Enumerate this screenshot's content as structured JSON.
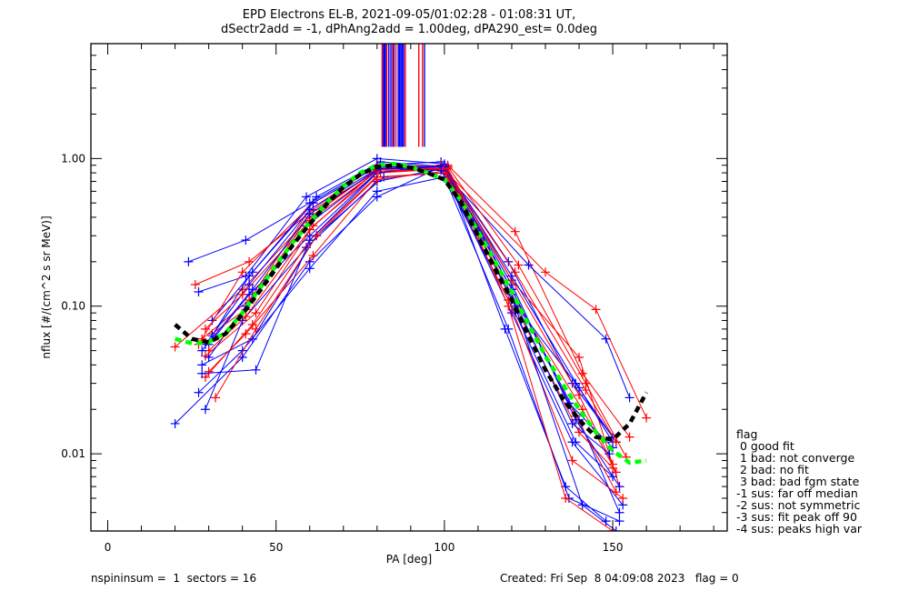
{
  "chart_data": {
    "type": "line",
    "title_line1": "EPD Electrons EL-B, 2021-09-05/01:02:28 - 01:08:31 UT,",
    "title_line2": "dSectr2add = -1, dPhAng2add = 1.00deg, dPA290_est=   0.0deg",
    "xlabel": "PA [deg]",
    "ylabel": "nflux [#/(cm^2 s sr MeV)]",
    "xlim": [
      -5,
      184
    ],
    "ylim": [
      0.003,
      6.0
    ],
    "yscale": "log",
    "xticks": [
      0,
      50,
      100,
      150
    ],
    "xtick_labels": [
      "0",
      "50",
      "100",
      "150"
    ],
    "yticks": [
      0.01,
      0.1,
      1.0
    ],
    "ytick_labels": [
      "0.01",
      "0.10",
      "1.00"
    ],
    "grid": false,
    "colors": {
      "red": "#ff0000",
      "blue": "#0000ff",
      "green": "#00ff00",
      "black": "#000000"
    },
    "vertical_markers": {
      "y_range": [
        1.2,
        6.0
      ],
      "lines": [
        {
          "x": 81.5,
          "color": "red"
        },
        {
          "x": 81.9,
          "color": "blue"
        },
        {
          "x": 82.2,
          "color": "blue"
        },
        {
          "x": 82.5,
          "color": "blue"
        },
        {
          "x": 82.9,
          "color": "red"
        },
        {
          "x": 83.5,
          "color": "blue"
        },
        {
          "x": 84.1,
          "color": "blue"
        },
        {
          "x": 84.6,
          "color": "red"
        },
        {
          "x": 85.0,
          "color": "blue"
        },
        {
          "x": 85.6,
          "color": "red"
        },
        {
          "x": 86.3,
          "color": "blue"
        },
        {
          "x": 86.7,
          "color": "blue"
        },
        {
          "x": 87.1,
          "color": "blue"
        },
        {
          "x": 87.5,
          "color": "blue"
        },
        {
          "x": 87.9,
          "color": "blue"
        },
        {
          "x": 88.4,
          "color": "red"
        },
        {
          "x": 92.4,
          "color": "red"
        },
        {
          "x": 93.5,
          "color": "red"
        },
        {
          "x": 94.1,
          "color": "blue"
        }
      ]
    },
    "series": [
      {
        "name": "spectrum-1",
        "color": "blue",
        "x": [
          20,
          40,
          60,
          80,
          100,
          120,
          140,
          152
        ],
        "y": [
          0.016,
          0.045,
          0.2,
          0.55,
          0.9,
          0.13,
          0.017,
          0.004
        ]
      },
      {
        "name": "spectrum-2",
        "color": "blue",
        "x": [
          24,
          41,
          60,
          80,
          99,
          119,
          138,
          150
        ],
        "y": [
          0.2,
          0.28,
          0.5,
          0.9,
          0.95,
          0.2,
          0.03,
          0.013
        ]
      },
      {
        "name": "spectrum-3",
        "color": "red",
        "x": [
          26,
          42,
          61,
          81,
          101,
          121,
          141,
          155
        ],
        "y": [
          0.14,
          0.2,
          0.45,
          0.85,
          0.9,
          0.32,
          0.035,
          0.013
        ]
      },
      {
        "name": "spectrum-4",
        "color": "blue",
        "x": [
          27,
          41,
          59,
          80,
          100,
          120,
          139,
          151
        ],
        "y": [
          0.125,
          0.16,
          0.55,
          1.0,
          0.92,
          0.11,
          0.03,
          0.012
        ]
      },
      {
        "name": "spectrum-5",
        "color": "red",
        "x": [
          20,
          40,
          60,
          80,
          99,
          130,
          145,
          160
        ],
        "y": [
          0.053,
          0.13,
          0.4,
          0.85,
          0.88,
          0.17,
          0.095,
          0.0175
        ]
      },
      {
        "name": "spectrum-6",
        "color": "blue",
        "x": [
          28,
          43,
          62,
          82,
          100,
          125,
          148,
          155
        ],
        "y": [
          0.04,
          0.06,
          0.3,
          0.75,
          0.8,
          0.19,
          0.06,
          0.024
        ]
      },
      {
        "name": "spectrum-7",
        "color": "red",
        "x": [
          29,
          44,
          61,
          80,
          101,
          120,
          140,
          152
        ],
        "y": [
          0.046,
          0.09,
          0.35,
          0.8,
          0.85,
          0.15,
          0.045,
          0.006
        ]
      },
      {
        "name": "spectrum-8",
        "color": "blue",
        "x": [
          30,
          42,
          60,
          81,
          99,
          120,
          138,
          153
        ],
        "y": [
          0.055,
          0.12,
          0.3,
          0.85,
          0.9,
          0.09,
          0.012,
          0.0045
        ]
      },
      {
        "name": "spectrum-9",
        "color": "red",
        "x": [
          31,
          41,
          60,
          79,
          100,
          121,
          140,
          150
        ],
        "y": [
          0.065,
          0.095,
          0.42,
          0.8,
          0.85,
          0.1,
          0.014,
          0.008
        ]
      },
      {
        "name": "spectrum-10",
        "color": "blue",
        "x": [
          29,
          40,
          59,
          80,
          99,
          119,
          137,
          152
        ],
        "y": [
          0.02,
          0.08,
          0.25,
          0.7,
          0.85,
          0.07,
          0.005,
          0.0035
        ]
      },
      {
        "name": "spectrum-11",
        "color": "red",
        "x": [
          30,
          41,
          61,
          80,
          100,
          120,
          141,
          151
        ],
        "y": [
          0.036,
          0.065,
          0.22,
          0.72,
          0.82,
          0.12,
          0.02,
          0.0075
        ]
      },
      {
        "name": "spectrum-12",
        "color": "blue",
        "x": [
          31,
          43,
          62,
          81,
          100,
          118,
          136,
          148
        ],
        "y": [
          0.08,
          0.17,
          0.55,
          0.95,
          0.88,
          0.07,
          0.006,
          0.0035
        ]
      },
      {
        "name": "spectrum-13",
        "color": "red",
        "x": [
          28,
          42,
          60,
          80,
          101,
          122,
          142,
          154
        ],
        "y": [
          0.06,
          0.11,
          0.45,
          0.9,
          0.88,
          0.19,
          0.03,
          0.0095
        ]
      },
      {
        "name": "spectrum-14",
        "color": "blue",
        "x": [
          27,
          40,
          60,
          80,
          100,
          121,
          139,
          150
        ],
        "y": [
          0.026,
          0.05,
          0.18,
          0.6,
          0.75,
          0.09,
          0.012,
          0.007
        ]
      },
      {
        "name": "spectrum-15",
        "color": "red",
        "x": [
          29,
          43,
          60,
          81,
          99,
          120,
          139,
          151
        ],
        "y": [
          0.033,
          0.075,
          0.28,
          0.8,
          0.9,
          0.13,
          0.018,
          0.0055
        ]
      },
      {
        "name": "spectrum-16",
        "color": "blue",
        "x": [
          30,
          41,
          59,
          80,
          100,
          120,
          137,
          150
        ],
        "y": [
          0.045,
          0.1,
          0.35,
          0.82,
          0.85,
          0.13,
          0.022,
          0.011
        ]
      },
      {
        "name": "spectrum-17",
        "color": "red",
        "x": [
          32,
          44,
          62,
          80,
          100,
          119,
          138,
          153
        ],
        "y": [
          0.024,
          0.07,
          0.3,
          0.75,
          0.8,
          0.11,
          0.009,
          0.005
        ]
      },
      {
        "name": "spectrum-18",
        "color": "blue",
        "x": [
          29,
          42,
          60,
          80,
          100,
          120,
          139,
          152
        ],
        "y": [
          0.055,
          0.14,
          0.45,
          0.85,
          0.88,
          0.14,
          0.017,
          0.006
        ]
      },
      {
        "name": "spectrum-19",
        "color": "red",
        "x": [
          27,
          40,
          61,
          80,
          100,
          120,
          140,
          150
        ],
        "y": [
          0.055,
          0.17,
          0.5,
          0.88,
          0.86,
          0.15,
          0.025,
          0.0085
        ]
      },
      {
        "name": "spectrum-20",
        "color": "blue",
        "x": [
          28,
          44,
          60,
          80,
          100,
          121,
          141,
          151
        ],
        "y": [
          0.035,
          0.037,
          0.28,
          0.8,
          0.9,
          0.1,
          0.0045,
          0.003
        ]
      },
      {
        "name": "spectrum-21",
        "color": "red",
        "x": [
          30,
          41,
          60,
          80,
          101,
          119,
          136,
          150
        ],
        "y": [
          0.05,
          0.085,
          0.33,
          0.84,
          0.86,
          0.1,
          0.005,
          0.003
        ]
      },
      {
        "name": "spectrum-22",
        "color": "blue",
        "x": [
          31,
          42,
          61,
          80,
          100,
          120,
          140,
          150
        ],
        "y": [
          0.063,
          0.16,
          0.5,
          0.88,
          0.88,
          0.16,
          0.028,
          0.012
        ]
      },
      {
        "name": "spectrum-23",
        "color": "red",
        "x": [
          29,
          40,
          60,
          80,
          100,
          121,
          142,
          151
        ],
        "y": [
          0.07,
          0.12,
          0.38,
          0.82,
          0.85,
          0.17,
          0.027,
          0.012
        ]
      },
      {
        "name": "spectrum-24",
        "color": "blue",
        "x": [
          28,
          43,
          60,
          81,
          99,
          120,
          138,
          149
        ],
        "y": [
          0.05,
          0.13,
          0.42,
          0.86,
          0.83,
          0.12,
          0.016,
          0.01
        ]
      }
    ],
    "fit_curves": [
      {
        "name": "fit-green",
        "color": "green",
        "style": "dashed",
        "x": [
          20,
          25,
          30,
          35,
          40,
          45,
          50,
          55,
          60,
          65,
          70,
          75,
          80,
          85,
          90,
          95,
          100,
          105,
          110,
          115,
          120,
          125,
          130,
          135,
          140,
          145,
          150,
          155,
          160
        ],
        "y": [
          0.06,
          0.056,
          0.057,
          0.066,
          0.09,
          0.13,
          0.19,
          0.27,
          0.37,
          0.5,
          0.65,
          0.8,
          0.9,
          0.92,
          0.88,
          0.8,
          0.72,
          0.52,
          0.32,
          0.2,
          0.125,
          0.075,
          0.046,
          0.03,
          0.02,
          0.014,
          0.0105,
          0.0087,
          0.009
        ]
      },
      {
        "name": "fit-black",
        "color": "black",
        "style": "dashed",
        "x": [
          20,
          25,
          30,
          35,
          40,
          45,
          50,
          55,
          60,
          65,
          70,
          75,
          80,
          85,
          90,
          95,
          100,
          105,
          110,
          115,
          120,
          125,
          130,
          135,
          140,
          145,
          150,
          155,
          160
        ],
        "y": [
          0.075,
          0.06,
          0.057,
          0.065,
          0.088,
          0.125,
          0.18,
          0.26,
          0.36,
          0.49,
          0.64,
          0.78,
          0.88,
          0.9,
          0.87,
          0.8,
          0.72,
          0.5,
          0.3,
          0.18,
          0.11,
          0.063,
          0.037,
          0.024,
          0.017,
          0.013,
          0.0125,
          0.016,
          0.026
        ]
      }
    ],
    "legend": {
      "title": "flag",
      "entries": [
        " 0 good fit",
        " 1 bad: not converge",
        " 2 bad: no fit",
        " 3 bad: bad fgm state",
        "-1 sus: far off median",
        "-2 sus: not symmetric",
        "-3 sus: fit peak off 90",
        "-4 sus: peaks high var"
      ],
      "placement": "right-bottom outside"
    }
  },
  "footer": {
    "left": "nspininsum =  1  sectors = 16",
    "right": "Created: Fri Sep  8 04:09:08 2023   flag = 0"
  }
}
